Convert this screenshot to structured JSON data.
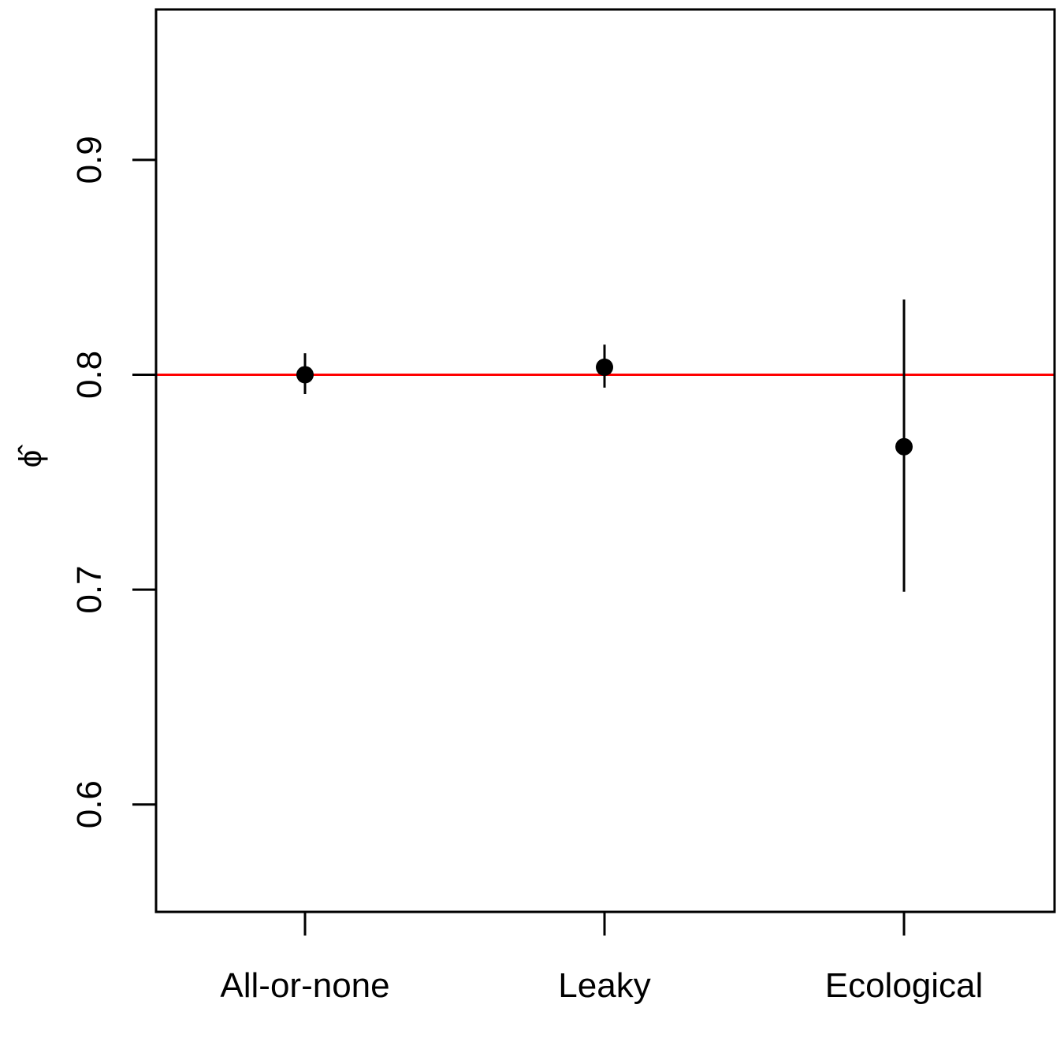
{
  "chart_data": {
    "type": "scatter",
    "title": "",
    "xlabel": "",
    "ylabel": "ϕ̂",
    "categories": [
      "All-or-none",
      "Leaky",
      "Ecological"
    ],
    "ylim": [
      0.55,
      0.97
    ],
    "yticks": [
      0.6,
      0.7,
      0.8,
      0.9
    ],
    "ytick_labels": [
      "0.6",
      "0.7",
      "0.8",
      "0.9"
    ],
    "series": [
      {
        "estimates": [
          0.8,
          0.8035,
          0.7665
        ],
        "lower": [
          0.791,
          0.794,
          0.699
        ],
        "upper": [
          0.81,
          0.814,
          0.835
        ]
      }
    ],
    "reference_line": {
      "y": 0.8,
      "color": "#ff0000"
    },
    "grid": false,
    "point_color": "#000000"
  }
}
